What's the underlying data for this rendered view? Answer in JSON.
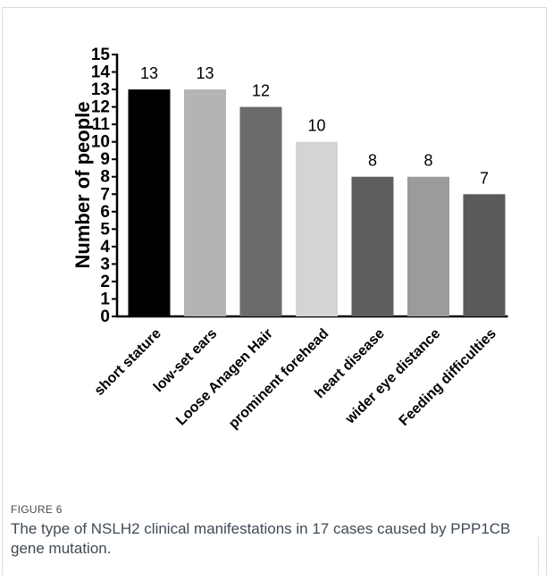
{
  "figure": {
    "label": "FIGURE 6",
    "caption": "The type of NSLH2 clinical manifestations in 17 cases caused by PPP1CB gene mutation."
  },
  "chart_data": {
    "type": "bar",
    "categories": [
      "short stature",
      "low-set ears",
      "Loose Anagen Hair",
      "prominent forehead",
      "heart disease",
      "wider eye distance",
      "Feeding difficulties"
    ],
    "values": [
      13,
      13,
      12,
      10,
      8,
      8,
      7
    ],
    "colors": [
      "#000000",
      "#b4b4b4",
      "#6b6b6b",
      "#d4d4d4",
      "#5f5f5f",
      "#9b9b9b",
      "#5a5a5a"
    ],
    "xlabel": "",
    "ylabel": "Number of people",
    "ylim": [
      0,
      15
    ],
    "yticks": [
      0,
      1,
      2,
      3,
      4,
      5,
      6,
      7,
      8,
      9,
      10,
      11,
      12,
      13,
      14,
      15
    ],
    "grid": false,
    "data_labels": true
  }
}
